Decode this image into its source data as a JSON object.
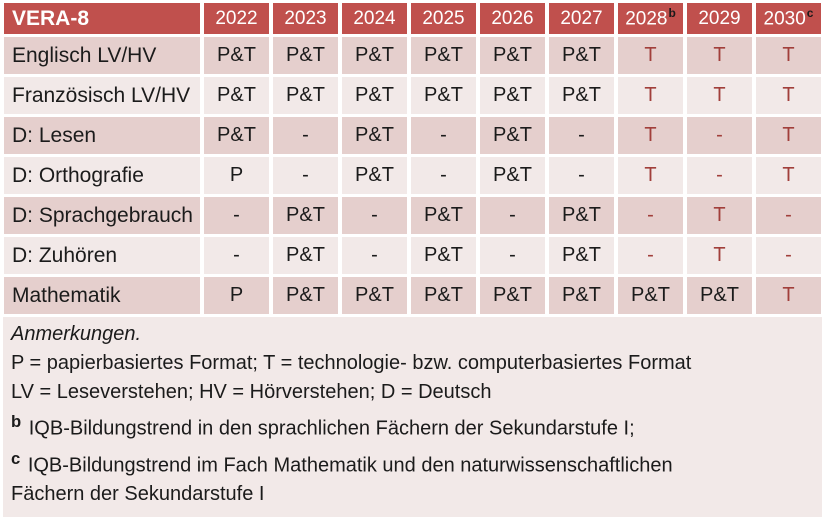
{
  "colors": {
    "header_bg": "#C0504D",
    "header_text": "#FFFFFF",
    "band_dark": "#E5CFCD",
    "band_light": "#F2E9E8",
    "accent_red": "#A13F3B",
    "body_text": "#1B1B1B",
    "grid": "#FFFFFF",
    "notes_bg": "#F2E9E8"
  },
  "table": {
    "title": "VERA-8",
    "columns": [
      {
        "label": "2022",
        "sup": ""
      },
      {
        "label": "2023",
        "sup": ""
      },
      {
        "label": "2024",
        "sup": ""
      },
      {
        "label": "2025",
        "sup": ""
      },
      {
        "label": "2026",
        "sup": ""
      },
      {
        "label": "2027",
        "sup": ""
      },
      {
        "label": "2028",
        "sup": "b"
      },
      {
        "label": "2029",
        "sup": ""
      },
      {
        "label": "2030",
        "sup": "c"
      }
    ],
    "rows": [
      {
        "label": "Englisch LV/HV",
        "cells": [
          {
            "text": "P&T",
            "red": false
          },
          {
            "text": "P&T",
            "red": false
          },
          {
            "text": "P&T",
            "red": false
          },
          {
            "text": "P&T",
            "red": false
          },
          {
            "text": "P&T",
            "red": false
          },
          {
            "text": "P&T",
            "red": false
          },
          {
            "text": "T",
            "red": true
          },
          {
            "text": "T",
            "red": true
          },
          {
            "text": "T",
            "red": true
          }
        ]
      },
      {
        "label": "Französisch LV/HV",
        "cells": [
          {
            "text": "P&T",
            "red": false
          },
          {
            "text": "P&T",
            "red": false
          },
          {
            "text": "P&T",
            "red": false
          },
          {
            "text": "P&T",
            "red": false
          },
          {
            "text": "P&T",
            "red": false
          },
          {
            "text": "P&T",
            "red": false
          },
          {
            "text": "T",
            "red": true
          },
          {
            "text": "T",
            "red": true
          },
          {
            "text": "T",
            "red": true
          }
        ]
      },
      {
        "label": "D: Lesen",
        "cells": [
          {
            "text": "P&T",
            "red": false
          },
          {
            "text": "-",
            "red": false
          },
          {
            "text": "P&T",
            "red": false
          },
          {
            "text": "-",
            "red": false
          },
          {
            "text": "P&T",
            "red": false
          },
          {
            "text": "-",
            "red": false
          },
          {
            "text": "T",
            "red": true
          },
          {
            "text": "-",
            "red": true
          },
          {
            "text": "T",
            "red": true
          }
        ]
      },
      {
        "label": "D: Orthografie",
        "cells": [
          {
            "text": "P",
            "red": false
          },
          {
            "text": "-",
            "red": false
          },
          {
            "text": "P&T",
            "red": false
          },
          {
            "text": "-",
            "red": false
          },
          {
            "text": "P&T",
            "red": false
          },
          {
            "text": "-",
            "red": false
          },
          {
            "text": "T",
            "red": true
          },
          {
            "text": "-",
            "red": true
          },
          {
            "text": "T",
            "red": true
          }
        ]
      },
      {
        "label": "D: Sprachgebrauch",
        "cells": [
          {
            "text": "-",
            "red": false
          },
          {
            "text": "P&T",
            "red": false
          },
          {
            "text": "-",
            "red": false
          },
          {
            "text": "P&T",
            "red": false
          },
          {
            "text": "-",
            "red": false
          },
          {
            "text": "P&T",
            "red": false
          },
          {
            "text": "-",
            "red": true
          },
          {
            "text": "T",
            "red": true
          },
          {
            "text": "-",
            "red": true
          }
        ]
      },
      {
        "label": "D: Zuhören",
        "cells": [
          {
            "text": "-",
            "red": false
          },
          {
            "text": "P&T",
            "red": false
          },
          {
            "text": "-",
            "red": false
          },
          {
            "text": "P&T",
            "red": false
          },
          {
            "text": "-",
            "red": false
          },
          {
            "text": "P&T",
            "red": false
          },
          {
            "text": "-",
            "red": true
          },
          {
            "text": "T",
            "red": true
          },
          {
            "text": "-",
            "red": true
          }
        ]
      },
      {
        "label": "Mathematik",
        "cells": [
          {
            "text": "P",
            "red": false
          },
          {
            "text": "P&T",
            "red": false
          },
          {
            "text": "P&T",
            "red": false
          },
          {
            "text": "P&T",
            "red": false
          },
          {
            "text": "P&T",
            "red": false
          },
          {
            "text": "P&T",
            "red": false
          },
          {
            "text": "P&T",
            "red": false
          },
          {
            "text": "P&T",
            "red": false
          },
          {
            "text": "T",
            "red": true
          }
        ]
      }
    ]
  },
  "notes": {
    "heading": "Anmerkungen.",
    "lines": [
      {
        "sup": "",
        "text": "P = papierbasiertes Format; T = technologie- bzw. computerbasiertes Format"
      },
      {
        "sup": "",
        "text": "LV = Leseverstehen; HV = Hörverstehen; D = Deutsch"
      },
      {
        "sup": "b",
        "text": "IQB-Bildungstrend in den sprachlichen Fächern der Sekundarstufe I;"
      },
      {
        "sup": "c",
        "text": "IQB-Bildungstrend im Fach Mathematik und den naturwissenschaftlichen Fächern der Sekundarstufe I"
      }
    ]
  }
}
